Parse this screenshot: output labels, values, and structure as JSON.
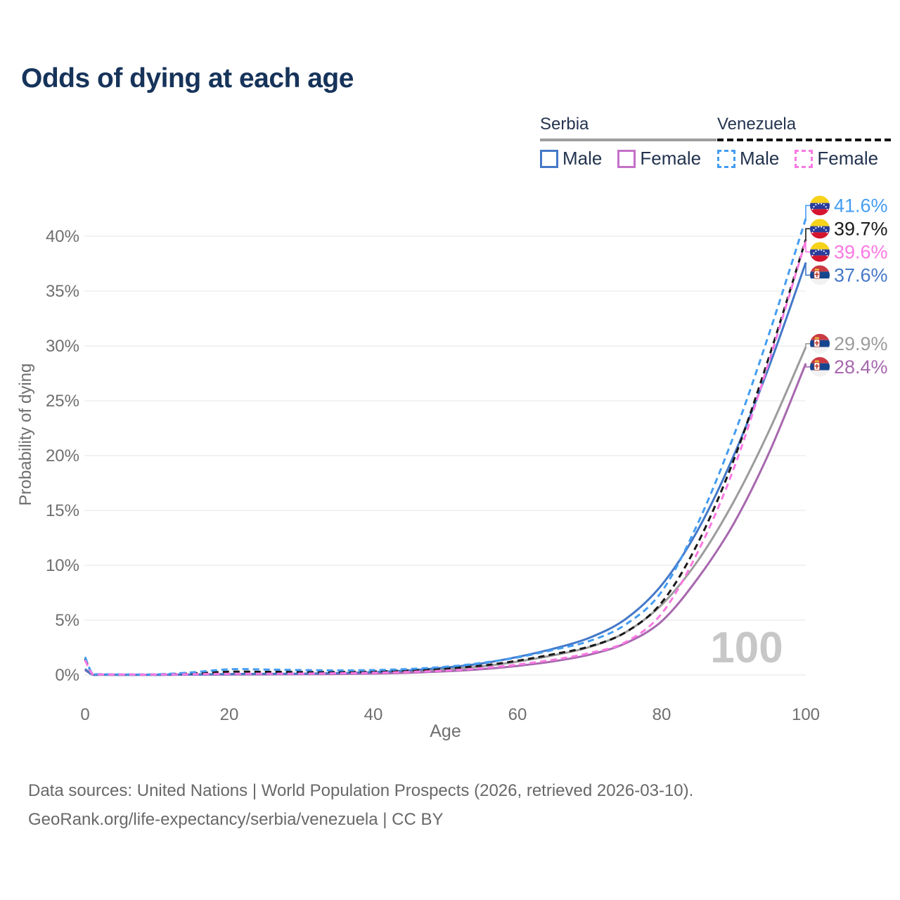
{
  "title": "Odds of dying at each age",
  "legend": {
    "groups": [
      {
        "label": "Serbia",
        "line_style": "solid",
        "underline_color": "#9e9e9e",
        "items": [
          {
            "label": "Male",
            "color": "#4478c8",
            "dashed": false
          },
          {
            "label": "Female",
            "color": "#c470c9",
            "dashed": false
          }
        ]
      },
      {
        "label": "Venezuela",
        "line_style": "dashed",
        "underline_color": "#141414",
        "items": [
          {
            "label": "Male",
            "color": "#449df2",
            "dashed": true
          },
          {
            "label": "Female",
            "color": "#fb78e3",
            "dashed": true
          }
        ]
      }
    ]
  },
  "chart_data": {
    "type": "line",
    "title": "Odds of dying at each age",
    "xlabel": "Age",
    "ylabel": "Probability of dying",
    "xlim": [
      0,
      100
    ],
    "ylim": [
      0,
      42
    ],
    "x_ticks": [
      0,
      20,
      40,
      60,
      80,
      100
    ],
    "y_ticks": [
      0,
      5,
      10,
      15,
      20,
      25,
      30,
      35,
      40
    ],
    "y_tick_suffix": "%",
    "grid": "horizontal",
    "legend_position": "top-right",
    "age_watermark": "100",
    "x": [
      0,
      1,
      2,
      5,
      10,
      15,
      20,
      25,
      30,
      35,
      40,
      45,
      50,
      55,
      60,
      65,
      70,
      75,
      80,
      85,
      90,
      95,
      100
    ],
    "series": [
      {
        "name": "Venezuela Male",
        "country": "venezuela",
        "sex": "male",
        "color": "#449df2",
        "dashed": true,
        "end_label": "41.6%",
        "end_value": 41.6,
        "values": [
          1.65,
          0.12,
          0.08,
          0.05,
          0.06,
          0.25,
          0.52,
          0.5,
          0.45,
          0.42,
          0.45,
          0.55,
          0.75,
          1.1,
          1.6,
          2.3,
          3.1,
          4.6,
          7.6,
          13.8,
          21.8,
          31.3,
          41.6
        ]
      },
      {
        "name": "Venezuela Both sexes",
        "country": "venezuela",
        "sex": "both",
        "color": "#1a1a1a",
        "dashed": true,
        "end_label": "39.7%",
        "end_value": 39.7,
        "values": [
          1.5,
          0.1,
          0.06,
          0.04,
          0.05,
          0.15,
          0.3,
          0.29,
          0.28,
          0.28,
          0.32,
          0.42,
          0.58,
          0.85,
          1.3,
          1.9,
          2.6,
          3.9,
          6.6,
          12.0,
          19.6,
          29.2,
          39.7
        ]
      },
      {
        "name": "Venezuela Female",
        "country": "venezuela",
        "sex": "female",
        "color": "#fb78e3",
        "dashed": true,
        "end_label": "39.6%",
        "end_value": 39.6,
        "values": [
          1.35,
          0.09,
          0.05,
          0.04,
          0.04,
          0.08,
          0.11,
          0.12,
          0.13,
          0.16,
          0.2,
          0.28,
          0.4,
          0.62,
          0.95,
          1.4,
          2.0,
          3.0,
          5.6,
          11.2,
          18.8,
          28.8,
          39.6
        ]
      },
      {
        "name": "Serbia Male",
        "country": "serbia",
        "sex": "male",
        "color": "#4478c8",
        "dashed": false,
        "end_label": "37.6%",
        "end_value": 37.6,
        "values": [
          0.55,
          0.05,
          0.03,
          0.02,
          0.02,
          0.05,
          0.09,
          0.1,
          0.12,
          0.17,
          0.26,
          0.42,
          0.68,
          1.05,
          1.65,
          2.4,
          3.4,
          5.1,
          8.2,
          13.2,
          20.0,
          28.3,
          37.6
        ]
      },
      {
        "name": "Serbia Both sexes",
        "country": "serbia",
        "sex": "both",
        "color": "#9c9c9c",
        "dashed": false,
        "end_label": "29.9%",
        "end_value": 29.9,
        "values": [
          0.5,
          0.05,
          0.03,
          0.02,
          0.02,
          0.04,
          0.07,
          0.08,
          0.09,
          0.13,
          0.19,
          0.31,
          0.5,
          0.78,
          1.22,
          1.8,
          2.55,
          3.9,
          6.4,
          10.4,
          15.8,
          22.4,
          29.9
        ]
      },
      {
        "name": "Serbia Female",
        "country": "serbia",
        "sex": "female",
        "color": "#a768ae",
        "dashed": false,
        "end_label": "28.4%",
        "end_value": 28.4,
        "values": [
          0.45,
          0.04,
          0.02,
          0.02,
          0.02,
          0.03,
          0.04,
          0.05,
          0.07,
          0.09,
          0.13,
          0.21,
          0.34,
          0.53,
          0.83,
          1.25,
          1.85,
          2.9,
          4.9,
          8.8,
          13.8,
          20.4,
          28.4
        ]
      }
    ],
    "flag_colors": {
      "venezuela": {
        "top": "#f6d21a",
        "middle": "#2a3d9b",
        "bottom": "#d5152f",
        "stars": "#ffffff"
      },
      "serbia": {
        "top": "#ca3a44",
        "middle": "#17468f",
        "bottom": "#f2f2f2",
        "crown": "#e8b43a",
        "shield": "#ffffff",
        "detail": "#c0392b"
      }
    },
    "colors": {
      "grid": "#ededed",
      "axis_text": "#6f6f6f",
      "watermark": "#c7c7c7"
    }
  },
  "footer": {
    "line1": "Data sources: United Nations | World Population Prospects (2026, retrieved 2026-03-10).",
    "line2": "GeoRank.org/life-expectancy/serbia/venezuela | CC BY"
  }
}
